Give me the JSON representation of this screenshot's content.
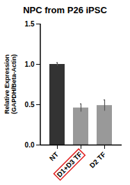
{
  "chart_data": {
    "type": "bar",
    "title": "NPC from P26 iPSC",
    "y_label": "Relative Expression (GAPDH/Beta-Actin)",
    "categories": [
      "NT",
      "D1+D3 TF",
      "D2 TF"
    ],
    "values": [
      1.0,
      0.46,
      0.49
    ],
    "errors": [
      0.02,
      0.05,
      0.07
    ],
    "colors": [
      "#333333",
      "#999999",
      "#999999"
    ],
    "ylim": [
      0,
      1.5
    ],
    "yticks": [
      {
        "value": 0,
        "label": "0.0"
      },
      {
        "value": 0.5,
        "label": "0.5"
      },
      {
        "value": 1.0,
        "label": "1.0"
      },
      {
        "value": 1.5,
        "label": "1.5"
      }
    ],
    "grid": false
  }
}
